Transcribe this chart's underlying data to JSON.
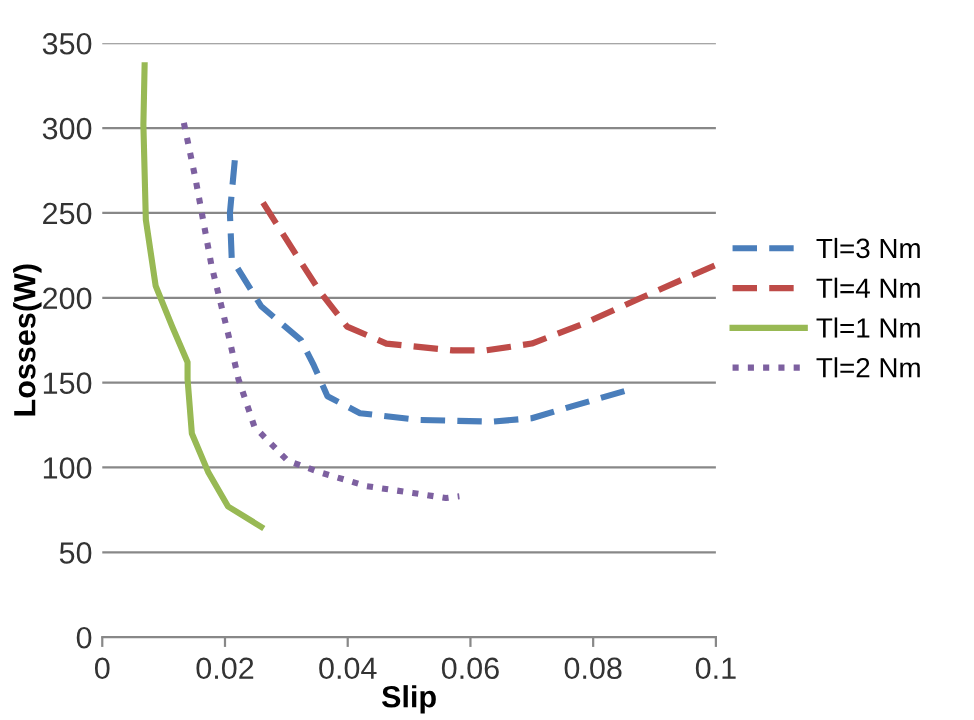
{
  "chart_data": {
    "type": "line",
    "xlabel": "Slip",
    "ylabel": "Losses(W)",
    "xlim": [
      0,
      0.1
    ],
    "xticks": [
      0,
      0.02,
      0.04,
      0.06,
      0.08,
      0.1
    ],
    "ylim": [
      0,
      350
    ],
    "yticks": [
      0,
      50,
      100,
      150,
      200,
      250,
      300,
      350
    ],
    "grid": "y",
    "legend": "right",
    "marker": "none",
    "series": [
      {
        "name": "Tl=3 Nm",
        "color": "#4a7ebb",
        "line_style": "dashed",
        "x": [
          0.0216,
          0.0208,
          0.0211,
          0.0259,
          0.0324,
          0.0345,
          0.0367,
          0.042,
          0.0517,
          0.0635,
          0.07,
          0.0765,
          0.0851
        ],
        "values": [
          281,
          250,
          223,
          195,
          175,
          160,
          142,
          132,
          128,
          127,
          129,
          136,
          145
        ]
      },
      {
        "name": "Tl=4 Nm",
        "color": "#be4b48",
        "line_style": "dashed",
        "x": [
          0.0262,
          0.0313,
          0.0356,
          0.0399,
          0.0463,
          0.0571,
          0.0625,
          0.07,
          0.0786,
          0.0872,
          0.0947,
          0.0998
        ],
        "values": [
          256,
          227,
          203,
          183,
          173,
          169,
          169,
          173,
          185,
          199,
          211,
          219
        ]
      },
      {
        "name": "Tl=1 Nm",
        "color": "#98b954",
        "line_style": "solid",
        "x": [
          0.0069,
          0.0067,
          0.0071,
          0.0087,
          0.0114,
          0.0139,
          0.0139,
          0.0146,
          0.0173,
          0.0205,
          0.0259
        ],
        "values": [
          337,
          302,
          246,
          207,
          183,
          162,
          152,
          120,
          97,
          77,
          65
        ]
      },
      {
        "name": "Tl=2 Nm",
        "color": "#7d60a0",
        "line_style": "dotted",
        "x": [
          0.0133,
          0.0152,
          0.0178,
          0.0205,
          0.0222,
          0.0248,
          0.0302,
          0.0356,
          0.0431,
          0.0506,
          0.056,
          0.0582
        ],
        "values": [
          303,
          270,
          219,
          179,
          152,
          124,
          104,
          97,
          89,
          85,
          82,
          83
        ]
      }
    ]
  }
}
